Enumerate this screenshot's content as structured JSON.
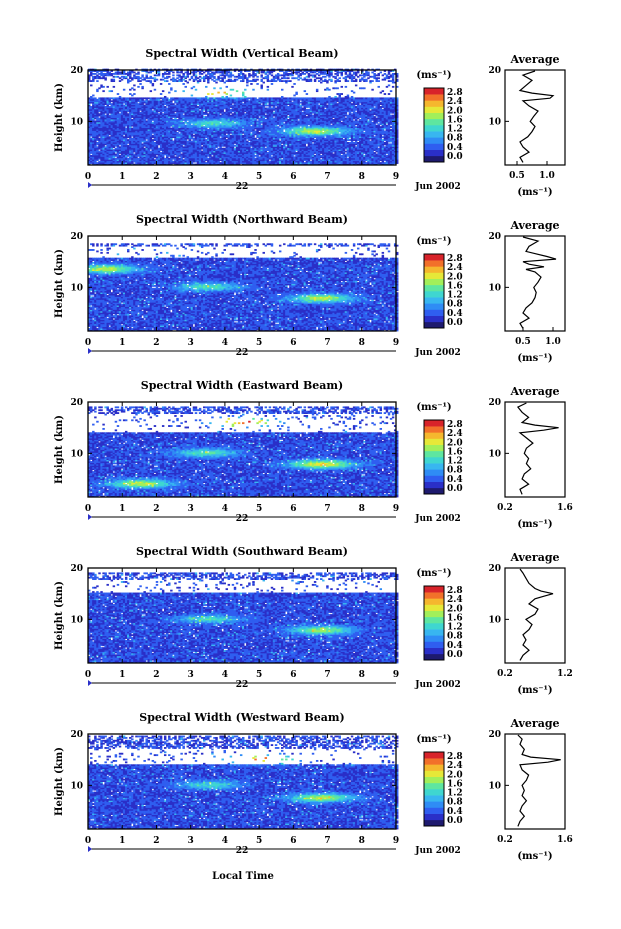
{
  "figure": {
    "xlabel": "Local Time",
    "date_label": "22",
    "month_label": "Jun 2002",
    "colorbar_unit": "(ms⁻¹)",
    "average_title": "Average",
    "average_xlabel": "(ms⁻¹)"
  },
  "colors": {
    "colormap": [
      "#1e1a6e",
      "#2a2fc8",
      "#2f5ef0",
      "#2f8cf5",
      "#38b6f0",
      "#3fd6d0",
      "#5ee6a0",
      "#a2ef5a",
      "#e6e838",
      "#f5b72e",
      "#f2702a",
      "#d8232a"
    ],
    "line": "#000000"
  },
  "chart_data": [
    {
      "type": "heatmap",
      "title": "Spectral Width (Vertical Beam)",
      "ylabel": "Height (km)",
      "xlim": [
        0,
        9
      ],
      "ylim": [
        1.5,
        20
      ],
      "xticks": [
        "0",
        "1",
        "2",
        "3",
        "4",
        "5",
        "6",
        "7",
        "8",
        "9"
      ],
      "yticks": [
        "10",
        "20"
      ],
      "colorbar_ticks": [
        "0.0",
        "0.4",
        "0.8",
        "1.2",
        "1.6",
        "2.0",
        "2.4",
        "2.8"
      ],
      "gap_band_km": [
        14.5,
        17.5
      ],
      "valid_max_km": 20,
      "hotspots": [
        {
          "t": 3.6,
          "h": 9.5,
          "v": 1.4
        },
        {
          "t": 6.6,
          "h": 8.0,
          "v": 2.0
        },
        {
          "t": 3.8,
          "h": 15.5,
          "v": 2.4
        }
      ],
      "average": {
        "xlim": [
          0.3,
          1.3
        ],
        "xticks": [
          "0.5",
          "1.0"
        ],
        "tick_values": [
          0.5,
          1.0
        ],
        "profile": [
          [
            2,
            0.6
          ],
          [
            3,
            0.55
          ],
          [
            4,
            0.7
          ],
          [
            5,
            0.6
          ],
          [
            6,
            0.55
          ],
          [
            7,
            0.68
          ],
          [
            8,
            0.75
          ],
          [
            9,
            0.8
          ],
          [
            10,
            0.72
          ],
          [
            11,
            0.78
          ],
          [
            12,
            0.85
          ],
          [
            13,
            0.7
          ],
          [
            14,
            0.6
          ],
          [
            14.5,
            1.05
          ],
          [
            15,
            1.1
          ],
          [
            15.5,
            0.75
          ],
          [
            16,
            0.55
          ],
          [
            17,
            0.65
          ],
          [
            18,
            0.75
          ],
          [
            19,
            0.6
          ],
          [
            19.8,
            0.8
          ]
        ]
      }
    },
    {
      "type": "heatmap",
      "title": "Spectral Width (Northward Beam)",
      "ylabel": "Height (km)",
      "xlim": [
        0,
        9
      ],
      "ylim": [
        1.5,
        20
      ],
      "xticks": [
        "0",
        "1",
        "2",
        "3",
        "4",
        "5",
        "6",
        "7",
        "8",
        "9"
      ],
      "yticks": [
        "10",
        "20"
      ],
      "colorbar_ticks": [
        "0.0",
        "0.4",
        "0.8",
        "1.2",
        "1.6",
        "2.0",
        "2.4",
        "2.8"
      ],
      "gap_band_km": [
        15.5,
        18.0
      ],
      "valid_max_km": 18.5,
      "hotspots": [
        {
          "t": 3.5,
          "h": 10.0,
          "v": 1.5
        },
        {
          "t": 6.8,
          "h": 7.8,
          "v": 2.0
        },
        {
          "t": 0.5,
          "h": 13.5,
          "v": 2.0
        }
      ],
      "average": {
        "xlim": [
          0.2,
          1.2
        ],
        "xticks": [
          "0.5",
          "1.0"
        ],
        "tick_values": [
          0.5,
          1.0
        ],
        "profile": [
          [
            2,
            0.5
          ],
          [
            3,
            0.45
          ],
          [
            4,
            0.6
          ],
          [
            5,
            0.5
          ],
          [
            6,
            0.55
          ],
          [
            7,
            0.65
          ],
          [
            8,
            0.7
          ],
          [
            9,
            0.72
          ],
          [
            10,
            0.68
          ],
          [
            11,
            0.75
          ],
          [
            12,
            0.8
          ],
          [
            13,
            0.7
          ],
          [
            13.5,
            0.55
          ],
          [
            14,
            0.85
          ],
          [
            14.5,
            0.6
          ],
          [
            15,
            0.5
          ],
          [
            15.5,
            1.05
          ],
          [
            16,
            0.9
          ],
          [
            17,
            0.55
          ],
          [
            18,
            0.6
          ],
          [
            19,
            0.75
          ],
          [
            19.8,
            0.5
          ]
        ]
      }
    },
    {
      "type": "heatmap",
      "title": "Spectral Width (Eastward Beam)",
      "ylabel": "Height (km)",
      "xlim": [
        0,
        9
      ],
      "ylim": [
        1.5,
        20
      ],
      "xticks": [
        "0",
        "1",
        "2",
        "3",
        "4",
        "5",
        "6",
        "7",
        "8",
        "9"
      ],
      "yticks": [
        "10",
        "20"
      ],
      "colorbar_ticks": [
        "0.0",
        "0.4",
        "0.8",
        "1.2",
        "1.6",
        "2.0",
        "2.4",
        "2.8"
      ],
      "gap_band_km": [
        14.0,
        17.5
      ],
      "valid_max_km": 19,
      "hotspots": [
        {
          "t": 3.4,
          "h": 10.0,
          "v": 1.6
        },
        {
          "t": 6.8,
          "h": 7.8,
          "v": 2.2
        },
        {
          "t": 4.5,
          "h": 16.0,
          "v": 2.6
        },
        {
          "t": 1.5,
          "h": 4.0,
          "v": 2.0
        }
      ],
      "average": {
        "xlim": [
          0.2,
          1.6
        ],
        "xticks": [
          "0.2",
          "1.6"
        ],
        "tick_values": [
          0.2,
          1.6
        ],
        "profile": [
          [
            2,
            0.6
          ],
          [
            3,
            0.55
          ],
          [
            4,
            0.75
          ],
          [
            5,
            0.6
          ],
          [
            6,
            0.65
          ],
          [
            7,
            0.8
          ],
          [
            8,
            0.7
          ],
          [
            9,
            0.75
          ],
          [
            10,
            0.65
          ],
          [
            11,
            0.7
          ],
          [
            12,
            0.85
          ],
          [
            13,
            0.7
          ],
          [
            14,
            0.55
          ],
          [
            14.5,
            1.1
          ],
          [
            15,
            1.45
          ],
          [
            15.5,
            0.9
          ],
          [
            16,
            0.6
          ],
          [
            17,
            0.75
          ],
          [
            18,
            0.6
          ],
          [
            19,
            0.5
          ],
          [
            19.8,
            0.7
          ]
        ]
      }
    },
    {
      "type": "heatmap",
      "title": "Spectral Width (Southward Beam)",
      "ylabel": "Height (km)",
      "xlim": [
        0,
        9
      ],
      "ylim": [
        1.5,
        20
      ],
      "xticks": [
        "0",
        "1",
        "2",
        "3",
        "4",
        "5",
        "6",
        "7",
        "8",
        "9"
      ],
      "yticks": [
        "10",
        "20"
      ],
      "colorbar_ticks": [
        "0.0",
        "0.4",
        "0.8",
        "1.2",
        "1.6",
        "2.0",
        "2.4",
        "2.8"
      ],
      "gap_band_km": [
        15.0,
        17.5
      ],
      "valid_max_km": 19,
      "hotspots": [
        {
          "t": 3.5,
          "h": 10.0,
          "v": 1.4
        },
        {
          "t": 6.8,
          "h": 7.8,
          "v": 1.9
        }
      ],
      "average": {
        "xlim": [
          0.2,
          1.2
        ],
        "xticks": [
          "0.2",
          "1.2"
        ],
        "tick_values": [
          0.2,
          1.2
        ],
        "profile": [
          [
            2,
            0.45
          ],
          [
            3,
            0.5
          ],
          [
            4,
            0.6
          ],
          [
            5,
            0.5
          ],
          [
            6,
            0.55
          ],
          [
            7,
            0.5
          ],
          [
            8,
            0.6
          ],
          [
            9,
            0.65
          ],
          [
            10,
            0.55
          ],
          [
            11,
            0.7
          ],
          [
            12,
            0.75
          ],
          [
            13,
            0.6
          ],
          [
            14,
            0.7
          ],
          [
            14.5,
            0.85
          ],
          [
            15,
            1.0
          ],
          [
            15.5,
            0.8
          ],
          [
            16,
            0.7
          ],
          [
            17,
            0.6
          ],
          [
            18,
            0.55
          ],
          [
            19,
            0.5
          ],
          [
            19.8,
            0.45
          ]
        ]
      }
    },
    {
      "type": "heatmap",
      "title": "Spectral Width (Westward Beam)",
      "ylabel": "Height (km)",
      "xlim": [
        0,
        9
      ],
      "ylim": [
        1.5,
        20
      ],
      "xticks": [
        "0",
        "1",
        "2",
        "3",
        "4",
        "5",
        "6",
        "7",
        "8",
        "9"
      ],
      "yticks": [
        "10",
        "20"
      ],
      "colorbar_ticks": [
        "0.0",
        "0.4",
        "0.8",
        "1.2",
        "1.6",
        "2.0",
        "2.4",
        "2.8"
      ],
      "gap_band_km": [
        14.0,
        17.0
      ],
      "valid_max_km": 19.5,
      "hotspots": [
        {
          "t": 3.5,
          "h": 10.0,
          "v": 1.4
        },
        {
          "t": 6.8,
          "h": 7.5,
          "v": 2.0
        },
        {
          "t": 5.0,
          "h": 15.0,
          "v": 2.6
        }
      ],
      "average": {
        "xlim": [
          0.2,
          1.6
        ],
        "xticks": [
          "0.2",
          "1.6"
        ],
        "tick_values": [
          0.2,
          1.6
        ],
        "profile": [
          [
            2,
            0.5
          ],
          [
            3,
            0.55
          ],
          [
            4,
            0.65
          ],
          [
            5,
            0.55
          ],
          [
            6,
            0.6
          ],
          [
            7,
            0.7
          ],
          [
            8,
            0.6
          ],
          [
            9,
            0.65
          ],
          [
            10,
            0.6
          ],
          [
            11,
            0.7
          ],
          [
            12,
            0.75
          ],
          [
            13,
            0.6
          ],
          [
            14,
            0.55
          ],
          [
            14.5,
            1.2
          ],
          [
            15,
            1.5
          ],
          [
            15.5,
            0.8
          ],
          [
            16,
            0.6
          ],
          [
            17,
            0.65
          ],
          [
            18,
            0.55
          ],
          [
            19,
            0.6
          ],
          [
            19.8,
            0.5
          ]
        ]
      }
    }
  ]
}
